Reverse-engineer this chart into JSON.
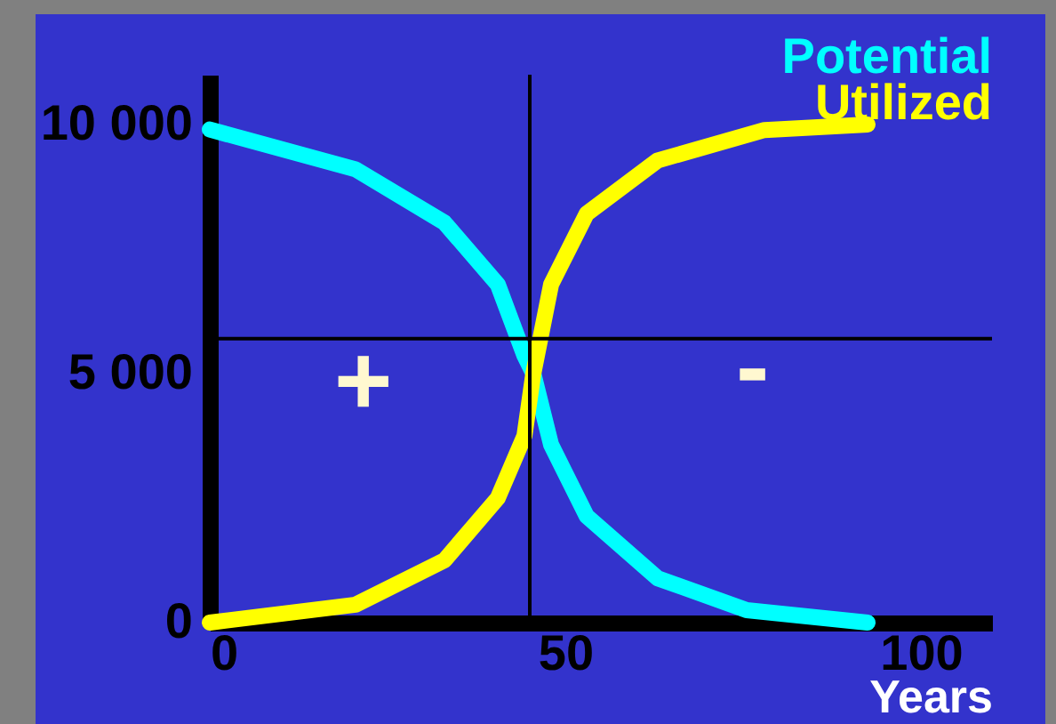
{
  "chart_data": {
    "type": "line",
    "xlabel": "Years",
    "xlim": [
      0,
      110
    ],
    "ylim": [
      0,
      11000
    ],
    "xticks": [
      0,
      50,
      100
    ],
    "yticks": [
      0,
      {
        "value": 5000,
        "label": "5 000"
      },
      {
        "value": 10000,
        "label": "10 000"
      }
    ],
    "grid": false,
    "legend": "top right",
    "marker": "none",
    "line_style": "solid",
    "series": [
      {
        "name": "Potential",
        "color": "#00ffff",
        "x": [
          0,
          20.5,
          33,
          40.5,
          44.25,
          45.5,
          48,
          53,
          63,
          75.5,
          92.5
        ],
        "values": [
          9900,
          9100,
          8030,
          6790,
          5360,
          5000,
          3570,
          2140,
          890,
          250,
          0
        ]
      },
      {
        "name": "Utilized",
        "color": "#ffff00",
        "x": [
          0,
          20.5,
          33,
          40.5,
          44.25,
          45.5,
          48,
          53,
          63,
          78,
          92.5
        ],
        "values": [
          0,
          360,
          1250,
          2500,
          3750,
          5000,
          6790,
          8210,
          9280,
          9890,
          10000
        ]
      }
    ],
    "ref_lines": [
      {
        "axis": "x",
        "value": 45,
        "color": "#000000"
      },
      {
        "axis": "y",
        "value": 5700,
        "color": "#000000"
      }
    ],
    "annotations": [
      "+",
      "-"
    ]
  }
}
